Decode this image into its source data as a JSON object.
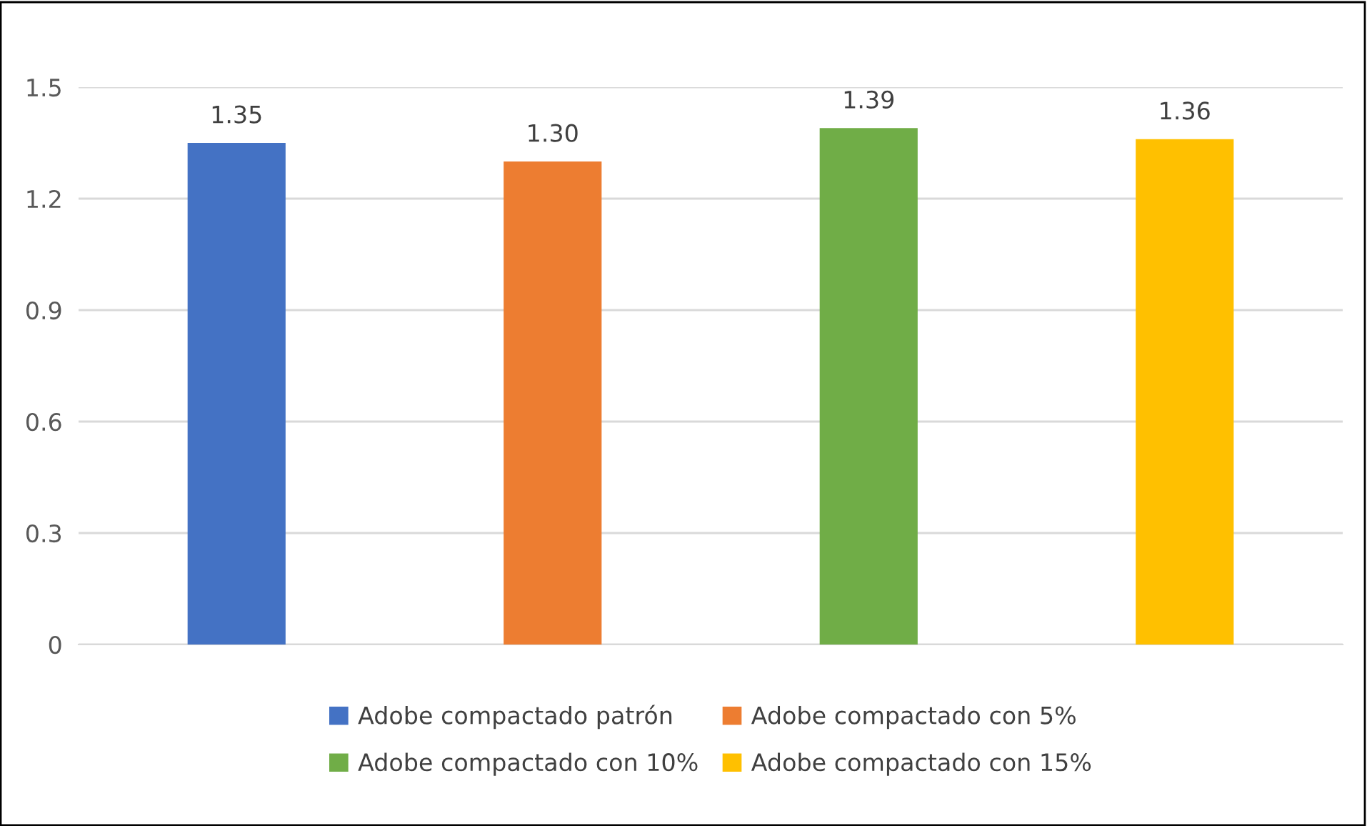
{
  "chart_data": {
    "type": "bar",
    "categories": [
      null,
      null,
      null,
      null
    ],
    "series": [
      {
        "name": "Adobe compactado patrón",
        "color": "#4472c4",
        "values": [
          1.35,
          null,
          null,
          null
        ]
      },
      {
        "name": "Adobe compactado con 5%",
        "color": "#ed7d31",
        "values": [
          null,
          1.3,
          null,
          null
        ]
      },
      {
        "name": "Adobe compactado con 10%",
        "color": "#70ad47",
        "values": [
          null,
          null,
          1.39,
          null
        ]
      },
      {
        "name": "Adobe compactado con 15%",
        "color": "#ffc000",
        "values": [
          null,
          null,
          null,
          1.36
        ]
      }
    ],
    "value_labels": [
      "1.35",
      "1.30",
      "1.39",
      "1.36"
    ],
    "ylim": [
      0,
      1.5
    ],
    "yticks": [
      {
        "value": 0,
        "label": "0"
      },
      0.3,
      0.6,
      0.9,
      1.2,
      1.5
    ],
    "grid": "y",
    "legend": "bottom"
  }
}
